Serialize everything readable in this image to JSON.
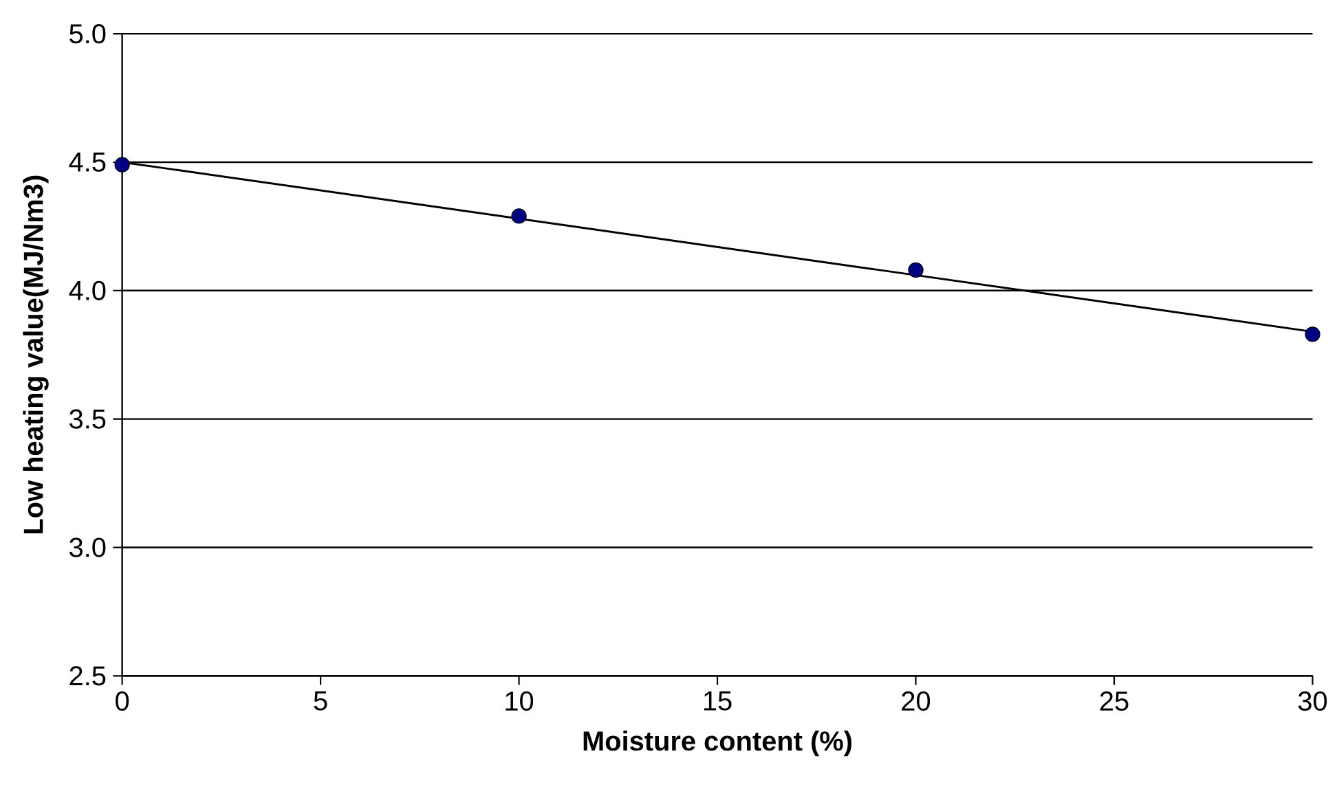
{
  "chart_data": {
    "type": "scatter",
    "xlabel": "Moisture content (%)",
    "ylabel": "Low heating value(MJ/Nm3)",
    "xlim": [
      0,
      30
    ],
    "xticks": [
      0,
      5,
      10,
      15,
      20,
      25,
      30
    ],
    "ylim": [
      2.5,
      5
    ],
    "yticks": [
      {
        "value": 2.5,
        "label": "2.5"
      },
      {
        "value": 3,
        "label": "3.0"
      },
      {
        "value": 3.5,
        "label": "3.5"
      },
      {
        "value": 4,
        "label": "4.0"
      },
      {
        "value": 4.5,
        "label": "4.5"
      },
      {
        "value": 5,
        "label": "5.0"
      }
    ],
    "grid": "y",
    "series": [
      {
        "type": "line",
        "x": [
          0,
          30
        ],
        "values": [
          4.5,
          3.84
        ],
        "color": "#000000",
        "marker": "none",
        "line_style": "solid"
      },
      {
        "x": [
          0,
          10,
          20,
          30
        ],
        "values": [
          4.49,
          4.29,
          4.08,
          3.83
        ],
        "color": "#000080",
        "marker": "circle"
      }
    ]
  }
}
